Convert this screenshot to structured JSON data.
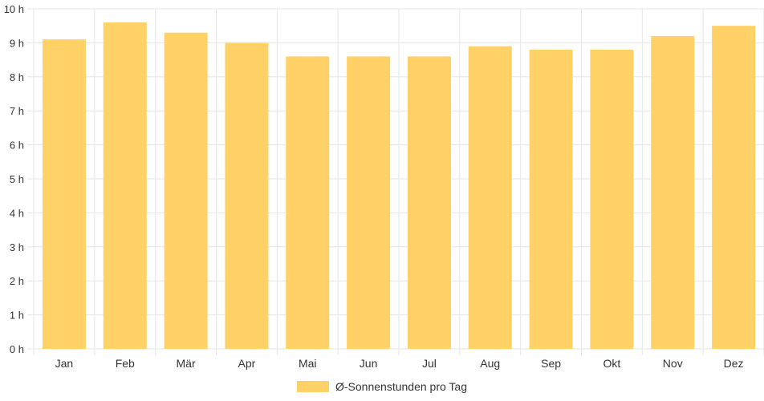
{
  "chart_data": {
    "type": "bar",
    "categories": [
      "Jan",
      "Feb",
      "Mär",
      "Apr",
      "Mai",
      "Jun",
      "Jul",
      "Aug",
      "Sep",
      "Okt",
      "Nov",
      "Dez"
    ],
    "series": [
      {
        "name": "Ø-Sonnenstunden pro Tag",
        "values": [
          9.1,
          9.6,
          9.3,
          9.0,
          8.6,
          8.6,
          8.6,
          8.9,
          8.8,
          8.8,
          9.2,
          9.5
        ]
      }
    ],
    "ylim": [
      0,
      10
    ],
    "yticks": [
      0,
      1,
      2,
      3,
      4,
      5,
      6,
      7,
      8,
      9,
      10
    ],
    "ytick_suffix": " h",
    "grid": true,
    "legend_position": "bottom",
    "bar_color": "#ffd166",
    "grid_color": "#e6e6e6"
  }
}
